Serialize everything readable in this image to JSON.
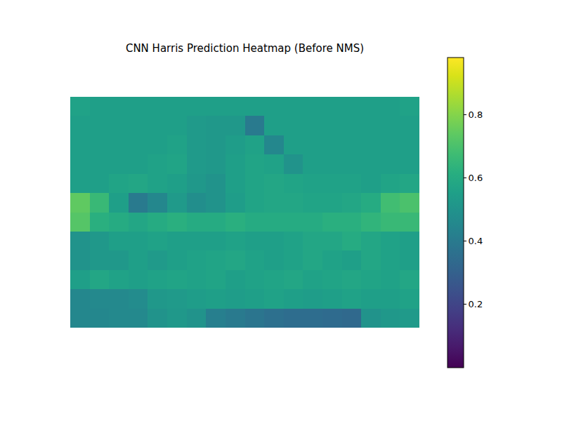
{
  "chart_data": {
    "type": "heatmap",
    "title": "CNN Harris Prediction Heatmap (Before NMS)",
    "tick_labels": false,
    "grid": false,
    "cells": [
      [
        0.56,
        0.55,
        0.55,
        0.55,
        0.55,
        0.55,
        0.55,
        0.55,
        0.55,
        0.55,
        0.55,
        0.55,
        0.55,
        0.55,
        0.55,
        0.55,
        0.55,
        0.56
      ],
      [
        0.55,
        0.55,
        0.55,
        0.55,
        0.55,
        0.55,
        0.53,
        0.52,
        0.52,
        0.4,
        0.55,
        0.55,
        0.55,
        0.55,
        0.55,
        0.55,
        0.55,
        0.55
      ],
      [
        0.55,
        0.55,
        0.55,
        0.55,
        0.55,
        0.56,
        0.53,
        0.52,
        0.54,
        0.56,
        0.45,
        0.55,
        0.55,
        0.55,
        0.55,
        0.55,
        0.55,
        0.55
      ],
      [
        0.55,
        0.55,
        0.55,
        0.55,
        0.56,
        0.57,
        0.53,
        0.52,
        0.55,
        0.57,
        0.56,
        0.5,
        0.55,
        0.55,
        0.55,
        0.55,
        0.55,
        0.55
      ],
      [
        0.55,
        0.55,
        0.57,
        0.58,
        0.56,
        0.55,
        0.52,
        0.5,
        0.55,
        0.57,
        0.58,
        0.57,
        0.56,
        0.56,
        0.56,
        0.55,
        0.57,
        0.58
      ],
      [
        0.74,
        0.66,
        0.55,
        0.4,
        0.45,
        0.53,
        0.48,
        0.5,
        0.54,
        0.57,
        0.58,
        0.58,
        0.57,
        0.57,
        0.58,
        0.6,
        0.68,
        0.7
      ],
      [
        0.72,
        0.62,
        0.6,
        0.58,
        0.6,
        0.62,
        0.6,
        0.6,
        0.62,
        0.6,
        0.6,
        0.6,
        0.6,
        0.62,
        0.62,
        0.64,
        0.66,
        0.66
      ],
      [
        0.5,
        0.52,
        0.55,
        0.55,
        0.56,
        0.55,
        0.55,
        0.55,
        0.56,
        0.55,
        0.55,
        0.56,
        0.58,
        0.58,
        0.6,
        0.58,
        0.56,
        0.55
      ],
      [
        0.5,
        0.52,
        0.52,
        0.55,
        0.53,
        0.55,
        0.56,
        0.57,
        0.58,
        0.56,
        0.55,
        0.56,
        0.58,
        0.56,
        0.55,
        0.58,
        0.56,
        0.55
      ],
      [
        0.55,
        0.58,
        0.56,
        0.55,
        0.56,
        0.57,
        0.56,
        0.57,
        0.55,
        0.56,
        0.57,
        0.58,
        0.56,
        0.57,
        0.58,
        0.57,
        0.56,
        0.58
      ],
      [
        0.45,
        0.46,
        0.46,
        0.47,
        0.52,
        0.53,
        0.54,
        0.55,
        0.54,
        0.55,
        0.56,
        0.55,
        0.54,
        0.55,
        0.56,
        0.55,
        0.55,
        0.56
      ],
      [
        0.45,
        0.45,
        0.46,
        0.46,
        0.5,
        0.52,
        0.5,
        0.42,
        0.4,
        0.38,
        0.36,
        0.35,
        0.35,
        0.34,
        0.33,
        0.5,
        0.52,
        0.53
      ]
    ],
    "colorbar": {
      "range": [
        0,
        0.98
      ],
      "ticks": [
        0.2,
        0.4,
        0.6,
        0.8
      ]
    }
  }
}
